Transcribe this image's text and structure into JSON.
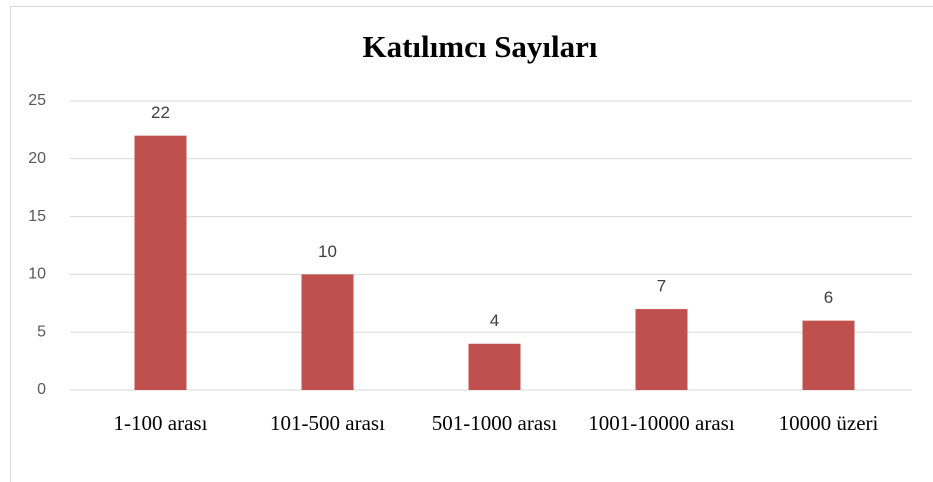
{
  "chart_data": {
    "type": "bar",
    "title": "Katılımcı Sayıları",
    "categories": [
      "1-100 arası",
      "101-500 arası",
      "501-1000 arası",
      "1001-10000 arası",
      "10000 üzeri"
    ],
    "values": [
      22,
      10,
      4,
      7,
      6
    ],
    "color": "#c0504d",
    "ylim": [
      0,
      25
    ],
    "yticks": [
      0,
      5,
      10,
      15,
      20,
      25
    ],
    "grid": true
  }
}
